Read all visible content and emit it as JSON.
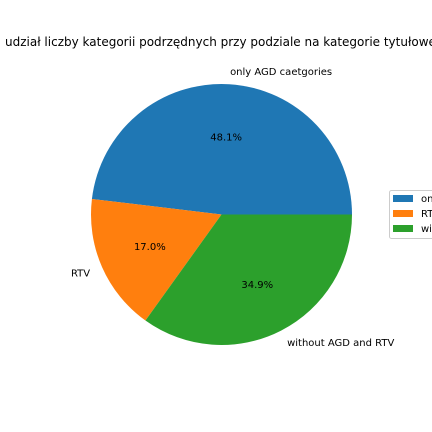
{
  "chart_data": {
    "type": "pie",
    "title": "udział liczby kategorii podrzędnych przy podziale na kategorie tytułowe",
    "slices": [
      {
        "label": "only AGD caetgories",
        "value": 48.1,
        "pct_label": "48.1%",
        "color": "#1f77b4"
      },
      {
        "label": "RTV",
        "value": 17.0,
        "pct_label": "17.0%",
        "color": "#ff7f0e"
      },
      {
        "label": "without AGD and RTV",
        "value": 34.9,
        "pct_label": "34.9%",
        "color": "#2ca02c"
      }
    ],
    "legend": {
      "placement": "right",
      "entries": [
        "only AGD caetgories",
        "RTV",
        "without AGD and RTV"
      ]
    }
  }
}
